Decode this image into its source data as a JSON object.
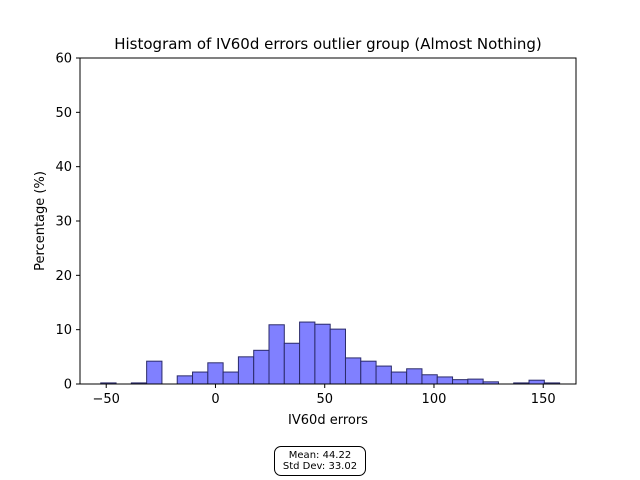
{
  "chart_data": {
    "type": "bar",
    "title": "Histogram of IV60d errors outlier group (Almost Nothing)",
    "xlabel": "IV60d errors",
    "ylabel": "Percentage (%)",
    "xlim": [
      -62,
      165
    ],
    "ylim": [
      0,
      60
    ],
    "xticks": [
      -50,
      0,
      50,
      100,
      150
    ],
    "yticks": [
      0,
      10,
      20,
      30,
      40,
      50,
      60
    ],
    "grid": false,
    "bar_color": "#8080ff",
    "bar_edge_color": "#2a2a6a",
    "bin_width": 7.0,
    "bins": [
      {
        "x0": -52.5,
        "value": 0.2
      },
      {
        "x0": -45.5,
        "value": 0.0
      },
      {
        "x0": -38.5,
        "value": 0.2
      },
      {
        "x0": -31.5,
        "value": 4.2
      },
      {
        "x0": -24.5,
        "value": 0.0
      },
      {
        "x0": -17.5,
        "value": 1.5
      },
      {
        "x0": -10.5,
        "value": 2.2
      },
      {
        "x0": -3.5,
        "value": 3.9
      },
      {
        "x0": 3.5,
        "value": 2.2
      },
      {
        "x0": 10.5,
        "value": 5.0
      },
      {
        "x0": 17.5,
        "value": 6.2
      },
      {
        "x0": 24.5,
        "value": 10.9
      },
      {
        "x0": 31.5,
        "value": 7.5
      },
      {
        "x0": 38.5,
        "value": 11.4
      },
      {
        "x0": 45.5,
        "value": 11.0
      },
      {
        "x0": 52.5,
        "value": 10.1
      },
      {
        "x0": 59.5,
        "value": 4.8
      },
      {
        "x0": 66.5,
        "value": 4.2
      },
      {
        "x0": 73.5,
        "value": 3.3
      },
      {
        "x0": 80.5,
        "value": 2.2
      },
      {
        "x0": 87.5,
        "value": 2.8
      },
      {
        "x0": 94.5,
        "value": 1.7
      },
      {
        "x0": 101.5,
        "value": 1.3
      },
      {
        "x0": 108.5,
        "value": 0.8
      },
      {
        "x0": 115.5,
        "value": 0.9
      },
      {
        "x0": 122.5,
        "value": 0.4
      },
      {
        "x0": 129.5,
        "value": 0.0
      },
      {
        "x0": 136.5,
        "value": 0.2
      },
      {
        "x0": 143.5,
        "value": 0.7
      },
      {
        "x0": 150.5,
        "value": 0.2
      }
    ],
    "stats": {
      "mean_label": "Mean: 44.22",
      "std_label": "Std Dev: 33.02"
    }
  }
}
